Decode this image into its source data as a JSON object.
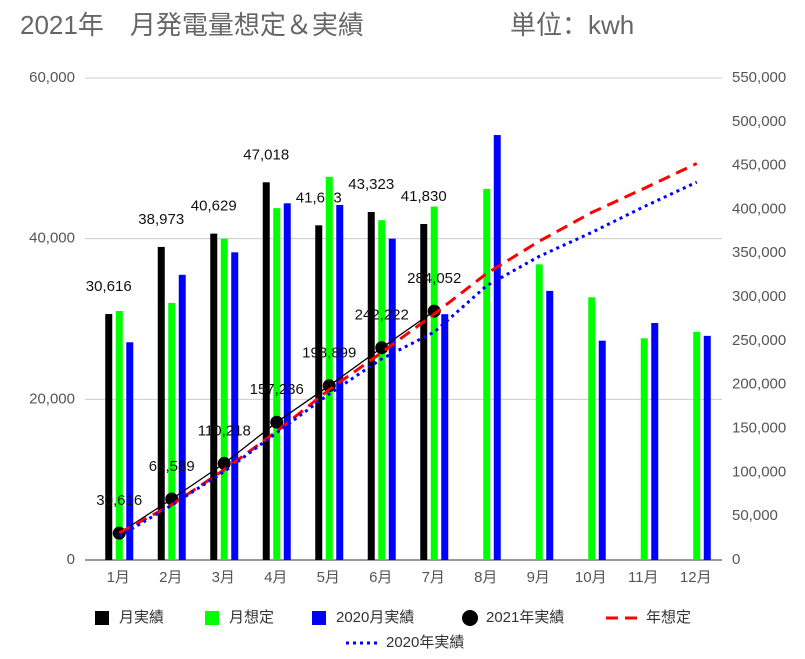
{
  "chart_data": {
    "type": "combo",
    "title": "2021年　月発電量想定＆実績",
    "unit_label": "単位：kwh",
    "categories": [
      "1月",
      "2月",
      "3月",
      "4月",
      "5月",
      "6月",
      "7月",
      "8月",
      "9月",
      "10月",
      "11月",
      "12月"
    ],
    "ylim": [
      0,
      60000
    ],
    "yticks": [
      0,
      {
        "value": 20000,
        "label": "20,000"
      },
      {
        "value": 40000,
        "label": "40,000"
      },
      {
        "value": 60000,
        "label": "60,000"
      }
    ],
    "y2lim": [
      0,
      550000
    ],
    "y2ticks": [
      0,
      {
        "value": 50000,
        "label": "50,000"
      },
      {
        "value": 100000,
        "label": "100,000"
      },
      {
        "value": 150000,
        "label": "150,000"
      },
      {
        "value": 200000,
        "label": "200,000"
      },
      {
        "value": 250000,
        "label": "250,000"
      },
      {
        "value": 300000,
        "label": "300,000"
      },
      {
        "value": 350000,
        "label": "350,000"
      },
      {
        "value": 400000,
        "label": "400,000"
      },
      {
        "value": 450000,
        "label": "450,000"
      },
      {
        "value": 500000,
        "label": "500,000"
      },
      {
        "value": 550000,
        "label": "550,000"
      }
    ],
    "grid": true,
    "legend": "bottom",
    "series": [
      {
        "name": "月実績",
        "kind": "bar",
        "color": "#000000",
        "values": [
          30616,
          38973,
          40629,
          47018,
          41663,
          43323,
          41830,
          null,
          null,
          null,
          null,
          null
        ],
        "value_labels": [
          "30,616",
          "38,973",
          "40,629",
          "47,018",
          "41,663",
          "43,323",
          "41,830",
          null,
          null,
          null,
          null,
          null
        ]
      },
      {
        "name": "月想定",
        "kind": "bar",
        "color": "#00ff00",
        "values": [
          31000,
          32000,
          40000,
          43800,
          47700,
          42300,
          44000,
          46200,
          36800,
          32700,
          27600,
          28400
        ]
      },
      {
        "name": "2020月実績",
        "kind": "bar",
        "color": "#0000ff",
        "values": [
          27100,
          35500,
          38300,
          44400,
          44200,
          40000,
          30600,
          52900,
          33500,
          27300,
          29500,
          27900
        ]
      },
      {
        "name": "2021年実績",
        "kind": "line",
        "axis": "y2",
        "color": "#000000",
        "line_style": "solid",
        "marker": "circle",
        "values": [
          30616,
          69589,
          110218,
          157236,
          198899,
          242222,
          284052,
          null,
          null,
          null,
          null,
          null
        ],
        "value_labels": [
          "30,616",
          "69,589",
          "110,218",
          "157,236",
          "198,899",
          "242,222",
          "284,052",
          null,
          null,
          null,
          null,
          null
        ]
      },
      {
        "name": "年想定",
        "kind": "line",
        "axis": "y2",
        "color": "#ff0000",
        "line_style": "dashed",
        "values": [
          31000,
          63000,
          103000,
          146800,
          194500,
          236800,
          280800,
          327000,
          363800,
          396500,
          424100,
          452500
        ]
      },
      {
        "name": "2020年実績",
        "kind": "line",
        "axis": "y2",
        "color": "#0000ff",
        "line_style": "dotted",
        "values": [
          27100,
          62600,
          100900,
          145300,
          189500,
          229500,
          260100,
          313000,
          346500,
          373800,
          403300,
          431200
        ]
      }
    ]
  }
}
